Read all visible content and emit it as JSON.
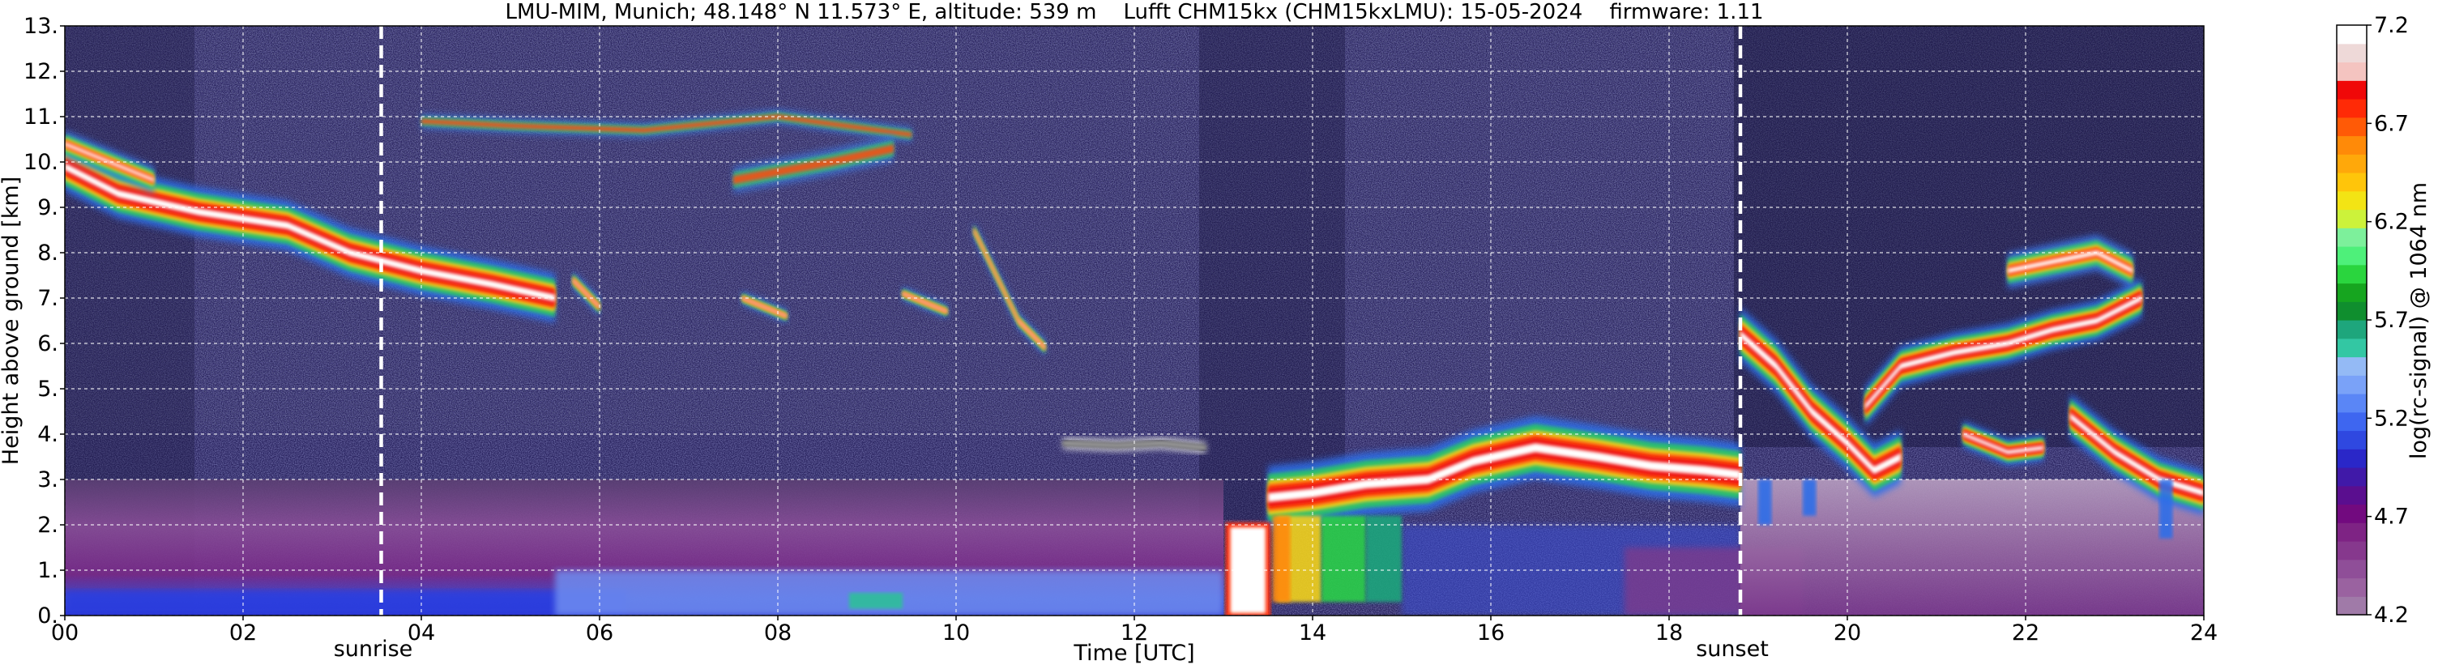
{
  "chart_data": {
    "type": "heatmap",
    "title": "LMU-MIM, Munich; 48.148° N 11.573° E, altitude: 539 m    Lufft CHM15kx (CHM15kxLMU): 15-05-2024    firmware: 1.11",
    "xlabel": "Time [UTC]",
    "ylabel": "Height above ground [km]",
    "xlim": [
      0,
      24
    ],
    "ylim": [
      0,
      13
    ],
    "x_ticks": [
      "00",
      "02",
      "04",
      "06",
      "08",
      "10",
      "12",
      "14",
      "16",
      "18",
      "20",
      "22",
      "24"
    ],
    "y_ticks": [
      "0.",
      "1.",
      "2.",
      "3.",
      "4.",
      "5.",
      "6.",
      "7.",
      "8.",
      "9.",
      "10.",
      "11.",
      "12.",
      "13."
    ],
    "grid": true,
    "markers": [
      {
        "label": "sunrise",
        "x": 3.55
      },
      {
        "label": "sunset",
        "x": 18.8
      }
    ],
    "colorbar": {
      "label": "log(rc-signal) @ 1064 nm",
      "range": [
        4.2,
        7.2
      ],
      "ticks": [
        "4.2",
        "4.7",
        "5.2",
        "5.7",
        "6.2",
        "6.7",
        "7.2"
      ],
      "colors": [
        "#a07aa8",
        "#9a62a0",
        "#8f4e98",
        "#86388d",
        "#7e2384",
        "#720a7f",
        "#5a0e8f",
        "#4019a8",
        "#2a27c8",
        "#2f48e0",
        "#3e66f0",
        "#5a86f6",
        "#7aa2f8",
        "#94baf5",
        "#33c7a3",
        "#1ea67c",
        "#0f8e2e",
        "#16a51f",
        "#2ad53e",
        "#4ef07a",
        "#7df09b",
        "#ccf23a",
        "#f3e414",
        "#ffc50a",
        "#ffa80a",
        "#ff8a08",
        "#ff5a06",
        "#ff2a06",
        "#f00808",
        "#f4c4c0",
        "#eed9d8",
        "#ffffff"
      ]
    },
    "features": [
      {
        "name": "cirrus_morning",
        "x": [
          0,
          5.5
        ],
        "y": [
          10.3,
          7.0
        ]
      },
      {
        "name": "cirrus_high",
        "x": [
          4.0,
          9.5
        ],
        "y": [
          11.0,
          9.0
        ]
      },
      {
        "name": "fallstreaks",
        "x": [
          6.0,
          11.2
        ],
        "y": [
          8.0,
          5.6
        ]
      },
      {
        "name": "thin_layer",
        "x": [
          11.2,
          12.8
        ],
        "y": [
          3.8,
          3.7
        ]
      },
      {
        "name": "precipitation",
        "x": [
          13.0,
          13.5
        ],
        "y": [
          0.0,
          2.0
        ]
      },
      {
        "name": "afternoon_cloud",
        "x": [
          13.5,
          18.8
        ],
        "y": [
          2.3,
          4.2
        ]
      },
      {
        "name": "convective_cells",
        "x": [
          13.5,
          15.2
        ],
        "y": [
          0.3,
          2.2
        ]
      },
      {
        "name": "evening_cloud",
        "x": [
          18.8,
          20.6
        ],
        "y": [
          6.0,
          3.0
        ]
      },
      {
        "name": "evening_layer_high",
        "x": [
          20.6,
          23.3
        ],
        "y": [
          5.5,
          8.5
        ]
      },
      {
        "name": "evening_layer_low",
        "x": [
          21.3,
          24.0
        ],
        "y": [
          4.0,
          2.5
        ]
      },
      {
        "name": "boundary_layer",
        "x": [
          0,
          24
        ],
        "y": [
          0,
          3.0
        ]
      }
    ]
  }
}
